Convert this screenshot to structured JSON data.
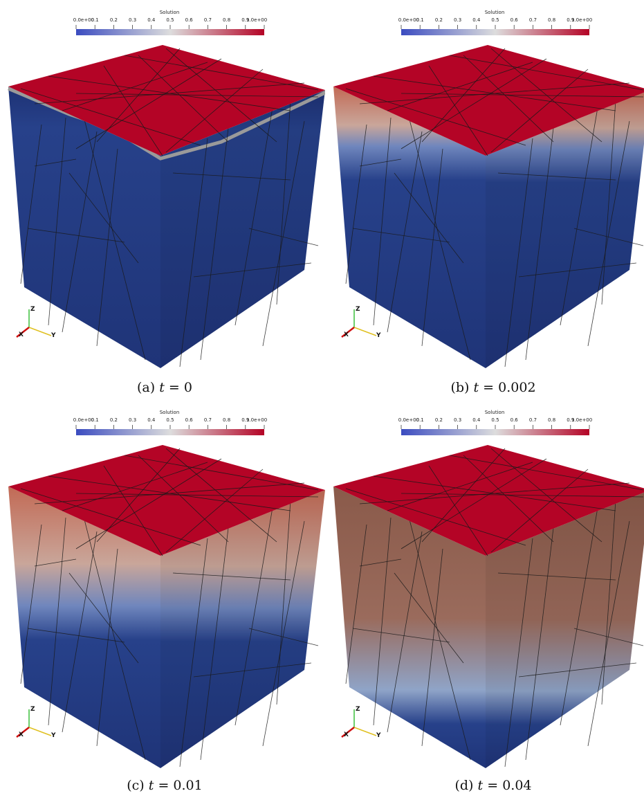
{
  "colorbar": {
    "title": "Solution",
    "ticks": [
      "0.0e+00",
      "0.1",
      "0.2",
      "0.3",
      "0.4",
      "0.5",
      "0.6",
      "0.7",
      "0.8",
      "0.9",
      "1.0e+00"
    ],
    "colors": {
      "low": "#3b4cc0",
      "mid": "#dddddd",
      "high": "#b40426"
    }
  },
  "axes": {
    "x": "X",
    "y": "Y",
    "z": "Z"
  },
  "panels": [
    {
      "label": "(a)",
      "var": "t",
      "equals": "=",
      "value": "0",
      "penetration": 0.03
    },
    {
      "label": "(b)",
      "var": "t",
      "equals": "=",
      "value": "0.002",
      "penetration": 0.25
    },
    {
      "label": "(c)",
      "var": "t",
      "equals": "=",
      "value": "0.01",
      "penetration": 0.5
    },
    {
      "label": "(d)",
      "var": "t",
      "equals": "=",
      "value": "0.04",
      "penetration": 0.85
    }
  ],
  "solution_colors": {
    "top_face": "#b40426",
    "bottom": "#1f3478",
    "warm": "#8a5a4a"
  }
}
